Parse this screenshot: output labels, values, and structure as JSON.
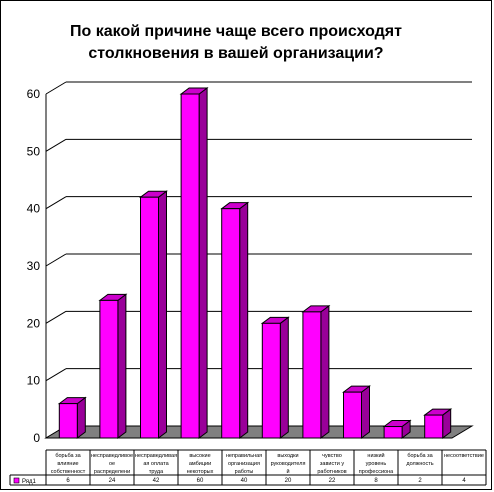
{
  "chart_data": {
    "type": "bar",
    "title_lines": [
      "По какой причине чаще всего происходят",
      "столкновения в вашей организации?"
    ],
    "categories": [
      [
        "борьба за",
        "влияние",
        "собственност"
      ],
      [
        "несправедливое",
        "ое",
        "распределени"
      ],
      [
        "несправедливая",
        "ая оплата",
        "труда"
      ],
      [
        "высокие",
        "амбиции",
        "некоторых"
      ],
      [
        "неправильная",
        "организация",
        "работы"
      ],
      [
        "выходки",
        "руководителя",
        "й"
      ],
      [
        "чувство",
        "зависти у",
        "работников"
      ],
      [
        "низкий",
        "уровень",
        "профессиона"
      ],
      [
        "борьба за",
        "должность"
      ],
      [
        "несоответствие"
      ]
    ],
    "series": [
      {
        "name": "Ряд1",
        "values": [
          6,
          24,
          42,
          60,
          40,
          20,
          22,
          8,
          2,
          4
        ]
      }
    ],
    "yticks": [
      0,
      10,
      20,
      30,
      40,
      50,
      60
    ],
    "ylim": [
      0,
      60
    ],
    "grid": true,
    "legend": "bottom-left",
    "colors": {
      "bar_front": "#ff00ff",
      "bar_side": "#990099",
      "bar_top": "#cc00cc",
      "floor": "#808080",
      "grid": "#000000"
    }
  }
}
